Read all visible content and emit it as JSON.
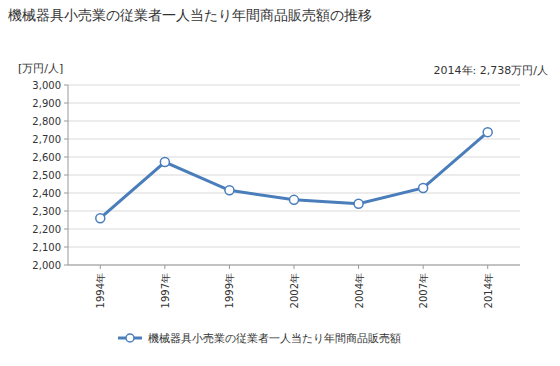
{
  "chart_data": {
    "type": "line",
    "title": "機械器具小売業の従業者一人当たり年間商品販売額の推移",
    "ylabel": "[万円/人]",
    "annotations": [
      "2014年: 2,738万円/人"
    ],
    "categories": [
      "1994年",
      "1997年",
      "1999年",
      "2002年",
      "2004年",
      "2007年",
      "2014年"
    ],
    "series": [
      {
        "name": "機械器具小売業の従業者一人当たり年間商品販売額",
        "color": "#4a7ebb",
        "marker": "circle",
        "values": [
          2260,
          2572,
          2415,
          2362,
          2340,
          2428,
          2738
        ]
      }
    ],
    "ylim": [
      2000,
      3000
    ],
    "yticks": [
      {
        "value": 2000,
        "label": "2,000"
      },
      {
        "value": 2100,
        "label": "2,100"
      },
      {
        "value": 2200,
        "label": "2,200"
      },
      {
        "value": 2300,
        "label": "2,300"
      },
      {
        "value": 2400,
        "label": "2,400"
      },
      {
        "value": 2500,
        "label": "2,500"
      },
      {
        "value": 2600,
        "label": "2,600"
      },
      {
        "value": 2700,
        "label": "2,700"
      },
      {
        "value": 2800,
        "label": "2,800"
      },
      {
        "value": 2900,
        "label": "2,900"
      },
      {
        "value": 3000,
        "label": "3,000"
      }
    ],
    "grid": true,
    "legend": "bottom"
  }
}
